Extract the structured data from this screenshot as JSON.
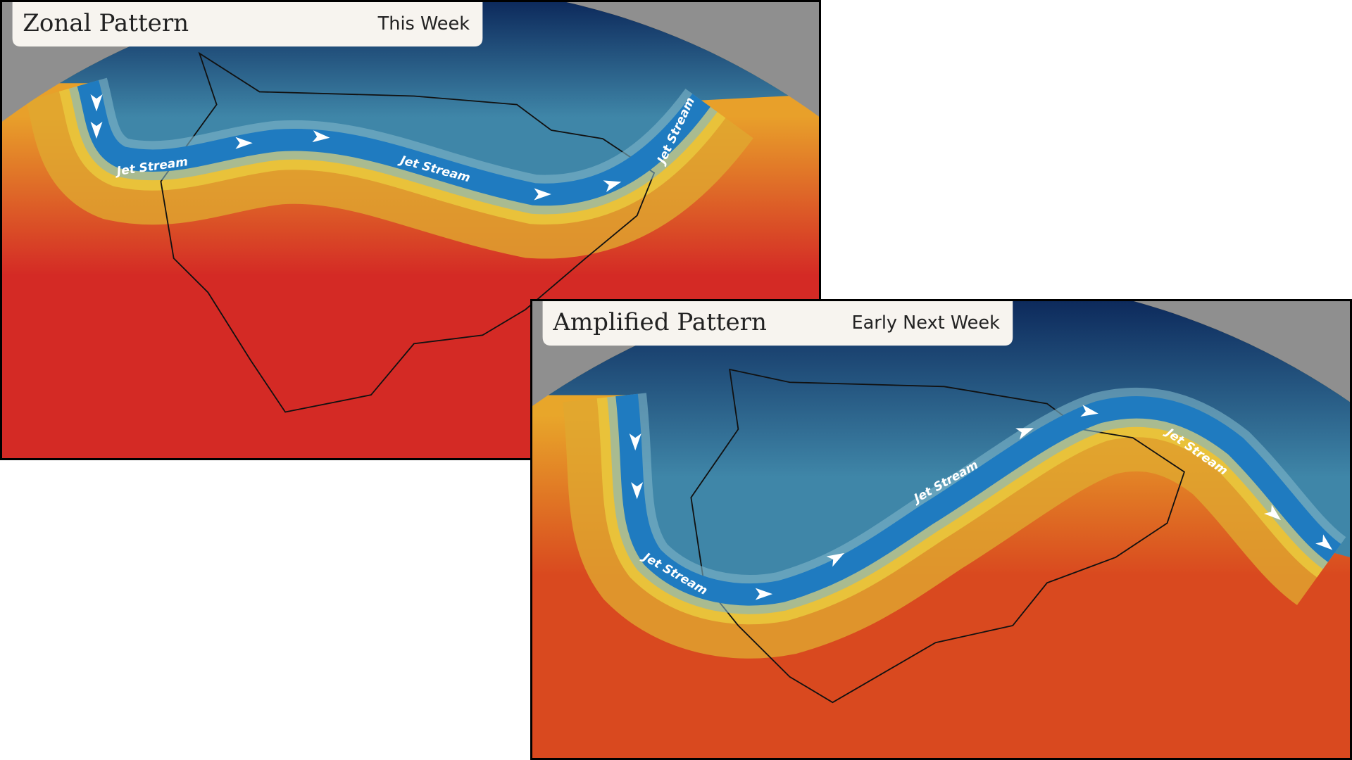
{
  "panels": [
    {
      "title": "Zonal Pattern",
      "timeframe": "This Week",
      "jet_labels": [
        "Jet Stream",
        "Jet Stream",
        "Jet Stream"
      ]
    },
    {
      "title": "Amplified Pattern",
      "timeframe": "Early Next Week",
      "jet_labels": [
        "Jet Stream",
        "Jet Stream",
        "Jet Stream"
      ]
    }
  ]
}
